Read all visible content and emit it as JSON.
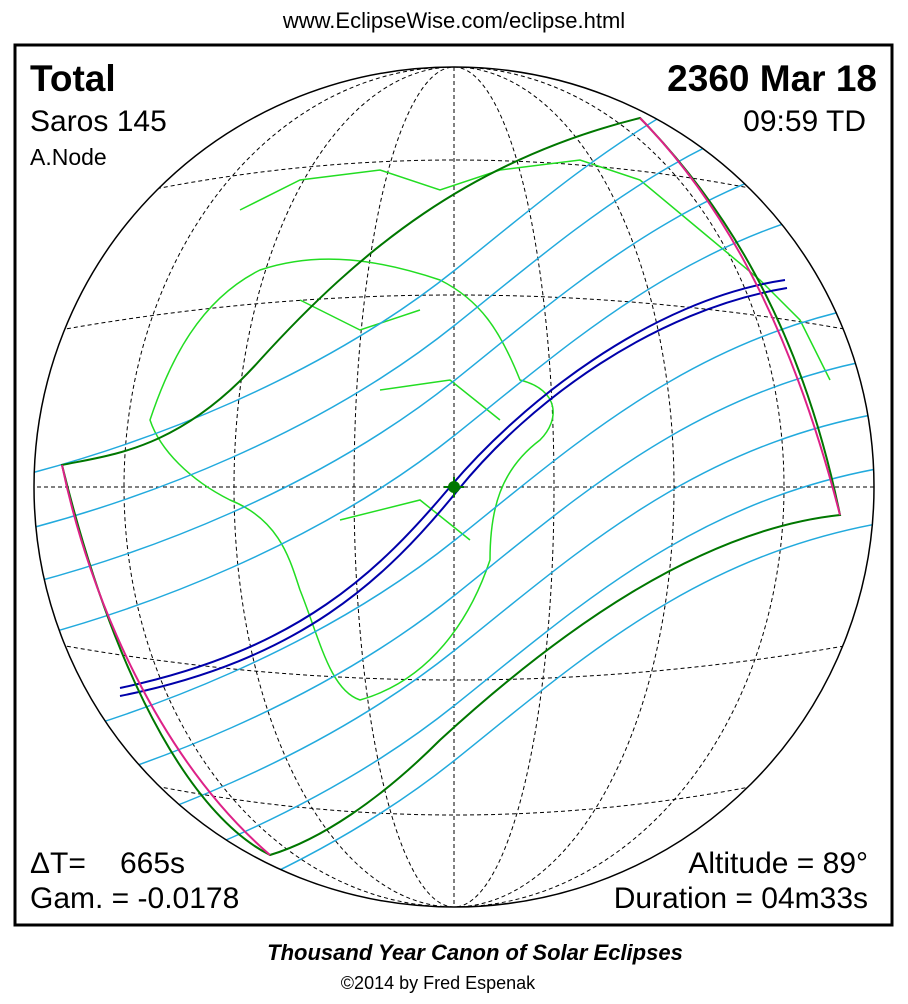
{
  "header": {
    "url": "www.EclipseWise.com/eclipse.html"
  },
  "panel": {
    "eclipse_type": "Total",
    "date": "2360 Mar 18",
    "saros": "Saros 145",
    "time": "09:59 TD",
    "node": "A.Node",
    "delta_t_label": "ΔT=",
    "delta_t_value": "665s",
    "gamma": "Gam. = -0.0178",
    "altitude": "Altitude = 89°",
    "duration": "Duration = 04m33s"
  },
  "footer": {
    "title": "Thousand Year Canon of Solar Eclipses",
    "credit": "©2014 by Fred Espenak"
  }
}
